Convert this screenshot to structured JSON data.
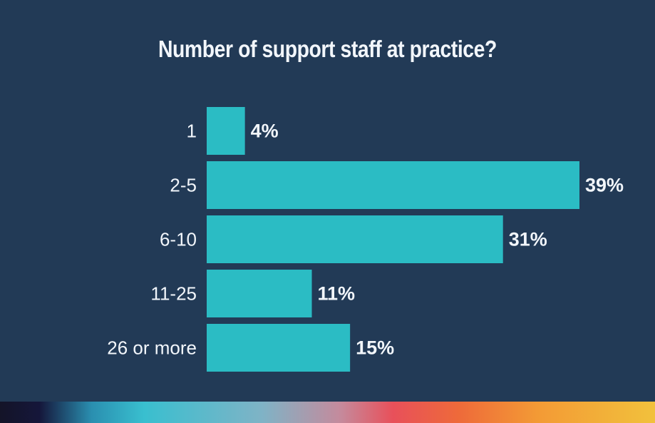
{
  "chart_data": {
    "type": "bar",
    "orientation": "horizontal",
    "title": "Number of support staff at practice?",
    "categories": [
      "1",
      "2-5",
      "6-10",
      "11-25",
      "26 or more"
    ],
    "values": [
      4,
      39,
      31,
      11,
      15
    ],
    "value_labels": [
      "4%",
      "39%",
      "31%",
      "11%",
      "15%"
    ],
    "xlim": [
      0,
      39
    ],
    "grid": false,
    "legend": "none",
    "bar_color": "#2bbcc4",
    "background_color": "#223a56",
    "text_color": "#f2f6fb"
  }
}
